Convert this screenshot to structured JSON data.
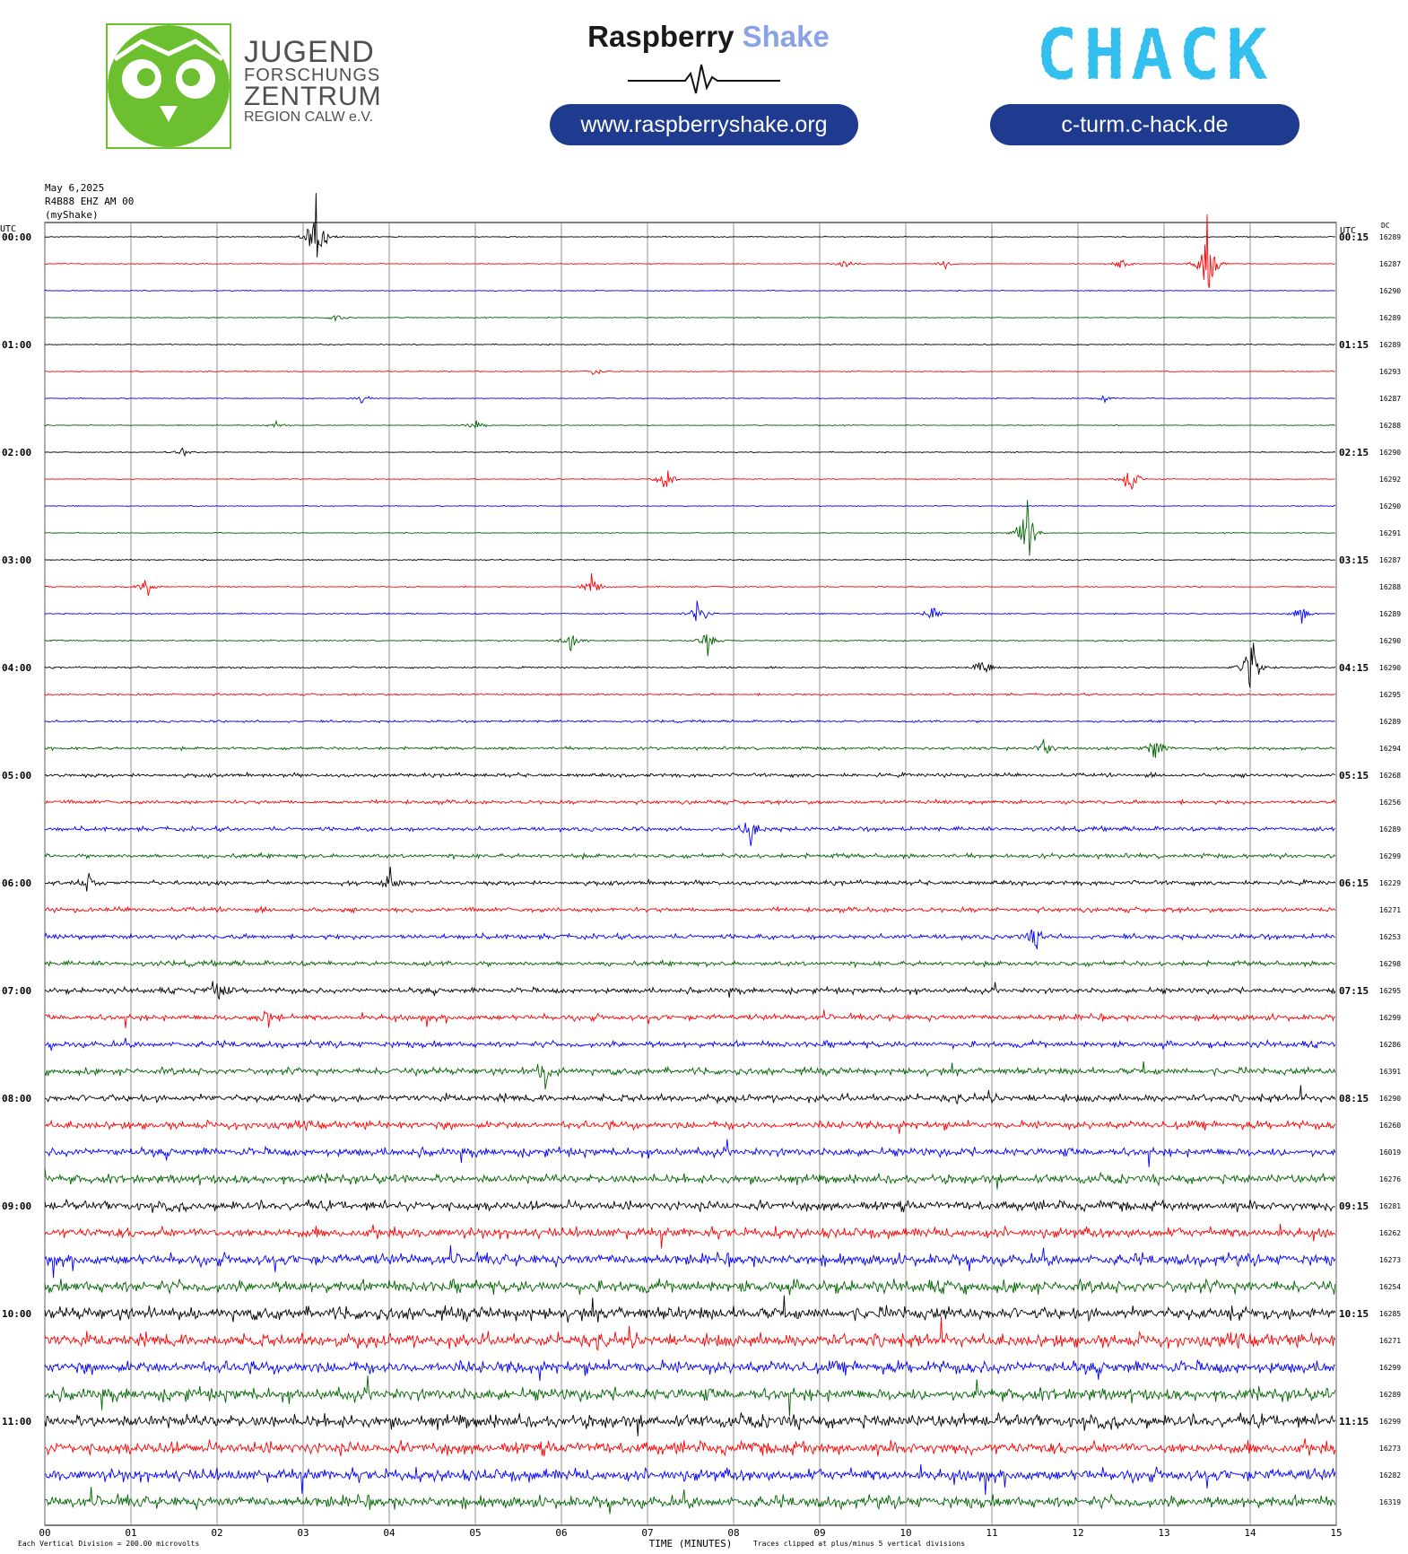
{
  "header": {
    "jfz": {
      "line1": "JUGEND",
      "line2": "FORSCHUNGS",
      "line3": "ZENTRUM",
      "line4": "REGION CALW e.V."
    },
    "raspberry": {
      "word1": "Raspberry",
      "word2": "Shake",
      "url": "www.raspberryshake.org"
    },
    "chack": {
      "logo": "CHACK",
      "url": "c-turm.c-hack.de"
    }
  },
  "meta": {
    "date": "May 6,2025",
    "station": "R4B88 EHZ AM 00",
    "source": "(myShake)"
  },
  "chart_data": {
    "type": "line",
    "title": "",
    "left_axis_label": "UTC",
    "right_axis_label": "UTC",
    "dc_label": "DC",
    "xlabel": "TIME (MINUTES)",
    "x_ticks": [
      "00",
      "01",
      "02",
      "03",
      "04",
      "05",
      "06",
      "07",
      "08",
      "09",
      "10",
      "11",
      "12",
      "13",
      "14",
      "15"
    ],
    "xlim": [
      0,
      15
    ],
    "left_hour_labels": [
      "00:00",
      "01:00",
      "02:00",
      "03:00",
      "04:00",
      "05:00",
      "06:00",
      "07:00",
      "08:00",
      "09:00",
      "10:00",
      "11:00"
    ],
    "right_hour_labels": [
      "00:15",
      "01:15",
      "02:15",
      "03:15",
      "04:15",
      "05:15",
      "06:15",
      "07:15",
      "08:15",
      "09:15",
      "10:15",
      "11:15"
    ],
    "trace_colors": [
      "#000000",
      "#ff0000",
      "#0000ff",
      "#006400"
    ],
    "dc_offsets": [
      16289,
      16287,
      16290,
      16289,
      16289,
      16293,
      16287,
      16288,
      16290,
      16292,
      16290,
      16291,
      16287,
      16288,
      16289,
      16290,
      16290,
      16295,
      16289,
      16294,
      16268,
      16256,
      16289,
      16299,
      16229,
      16271,
      16253,
      16298,
      16295,
      16299,
      16286,
      16391,
      16290,
      16260,
      16019,
      16276,
      16281,
      16262,
      16273,
      16254,
      16285,
      16271,
      16299,
      16289,
      16299,
      16273,
      16282,
      16319
    ],
    "noise_level": [
      0.4,
      0.4,
      0.4,
      0.4,
      0.4,
      0.4,
      0.4,
      0.4,
      0.4,
      0.4,
      0.4,
      0.4,
      0.5,
      0.5,
      0.5,
      0.6,
      0.7,
      0.8,
      0.9,
      1.2,
      1.5,
      1.6,
      1.7,
      1.8,
      1.8,
      1.9,
      2.0,
      2.0,
      2.2,
      2.4,
      2.5,
      2.8,
      3.0,
      3.2,
      3.4,
      3.6,
      3.8,
      4.2,
      4.6,
      5.0,
      5.2,
      5.4,
      5.0,
      5.0,
      5.2,
      5.0,
      5.0,
      4.8
    ],
    "events": [
      {
        "trace": 0,
        "minute": 3.15,
        "amp": 70
      },
      {
        "trace": 1,
        "minute": 9.3,
        "amp": 8
      },
      {
        "trace": 1,
        "minute": 10.45,
        "amp": 7
      },
      {
        "trace": 1,
        "minute": 12.5,
        "amp": 9
      },
      {
        "trace": 1,
        "minute": 13.5,
        "amp": 70
      },
      {
        "trace": 3,
        "minute": 3.4,
        "amp": 9
      },
      {
        "trace": 5,
        "minute": 6.4,
        "amp": 7
      },
      {
        "trace": 6,
        "minute": 3.7,
        "amp": 9
      },
      {
        "trace": 6,
        "minute": 12.3,
        "amp": 7
      },
      {
        "trace": 7,
        "minute": 2.7,
        "amp": 7
      },
      {
        "trace": 7,
        "minute": 5.0,
        "amp": 9
      },
      {
        "trace": 8,
        "minute": 1.6,
        "amp": 8
      },
      {
        "trace": 9,
        "minute": 7.2,
        "amp": 22
      },
      {
        "trace": 9,
        "minute": 12.6,
        "amp": 28
      },
      {
        "trace": 11,
        "minute": 11.4,
        "amp": 55
      },
      {
        "trace": 13,
        "minute": 1.2,
        "amp": 20
      },
      {
        "trace": 13,
        "minute": 6.35,
        "amp": 22
      },
      {
        "trace": 14,
        "minute": 7.6,
        "amp": 28
      },
      {
        "trace": 14,
        "minute": 10.3,
        "amp": 12
      },
      {
        "trace": 14,
        "minute": 14.6,
        "amp": 16
      },
      {
        "trace": 15,
        "minute": 6.1,
        "amp": 22
      },
      {
        "trace": 15,
        "minute": 7.7,
        "amp": 18
      },
      {
        "trace": 16,
        "minute": 14.0,
        "amp": 60
      },
      {
        "trace": 16,
        "minute": 10.9,
        "amp": 18
      },
      {
        "trace": 19,
        "minute": 11.6,
        "amp": 20
      },
      {
        "trace": 19,
        "minute": 12.9,
        "amp": 22
      },
      {
        "trace": 22,
        "minute": 8.2,
        "amp": 20
      },
      {
        "trace": 24,
        "minute": 4.0,
        "amp": 20
      },
      {
        "trace": 24,
        "minute": 0.5,
        "amp": 18
      },
      {
        "trace": 26,
        "minute": 11.5,
        "amp": 18
      },
      {
        "trace": 28,
        "minute": 2.0,
        "amp": 22
      },
      {
        "trace": 29,
        "minute": 2.6,
        "amp": 16
      },
      {
        "trace": 31,
        "minute": 5.8,
        "amp": 22
      }
    ],
    "scale_note": "Each Vertical Division =  200.00 microvolts",
    "clip_note": "Traces clipped at plus/minus 5 vertical divisions"
  }
}
